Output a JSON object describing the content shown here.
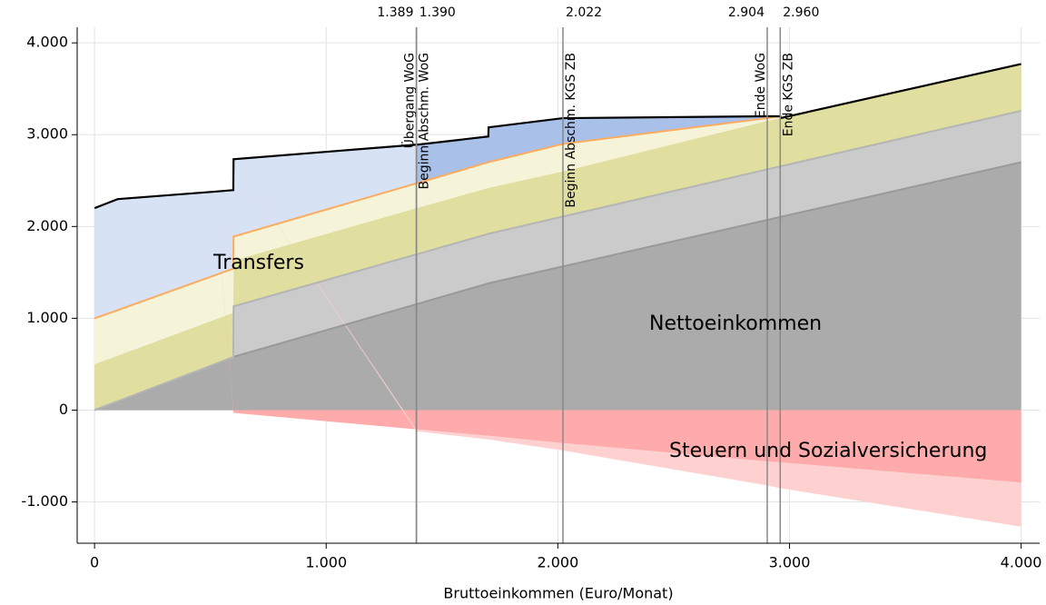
{
  "chart_data": {
    "type": "stacked_area",
    "x_label": "Bruttoeinkommen (Euro/Monat)",
    "x": [
      0,
      100,
      520,
      599,
      600,
      1389,
      1390,
      1700,
      1701,
      2022,
      2904,
      2960,
      2961,
      4000
    ],
    "series": [
      {
        "name": "Nettoeinkommen",
        "color": "#ababab",
        "line": "#999999",
        "values": [
          0,
          95,
          500,
          578,
          580,
          1153,
          1154,
          1380,
          1381,
          1565,
          2071,
          2103,
          2104,
          2700
        ]
      },
      {
        "color": "#cbcbcb",
        "line": "#b5b5b5",
        "values": [
          0,
          0,
          0,
          0,
          550,
          543,
          542,
          540,
          540,
          543,
          551,
          551,
          551,
          560
        ]
      },
      {
        "color": "#e0df9f",
        "values": [
          500,
          498,
          486,
          482,
          500,
          504,
          504,
          500,
          500,
          492,
          528,
          526,
          525,
          510
        ]
      },
      {
        "color": "#f5f3d8",
        "line": "#ffab5e",
        "values": [
          500,
          495,
          484,
          480,
          260,
          270,
          270,
          280,
          280,
          300,
          30,
          20,
          0,
          0
        ]
      },
      {
        "name": "Transfers",
        "color": "#d7e2f4",
        "values": [
          1200,
          1210,
          910,
          856,
          843,
          421,
          0,
          0,
          0,
          0,
          0,
          0,
          0,
          0
        ]
      },
      {
        "color": "#a9c0e8",
        "values": [
          0,
          0,
          0,
          0,
          0,
          0,
          420,
          280,
          379,
          280,
          20,
          0,
          0,
          0
        ]
      },
      {
        "name": "Steuern und Sozialversicherung",
        "color": "#ffabab",
        "values": [
          0,
          0,
          0,
          -30,
          -30,
          -210,
          -210,
          -280,
          -280,
          -360,
          -560,
          -570,
          -570,
          -790
        ]
      },
      {
        "color": "#ffd0d0",
        "values": [
          0,
          0,
          0,
          0,
          0,
          -20,
          -20,
          -40,
          -40,
          -80,
          -260,
          -280,
          -280,
          -480
        ]
      }
    ],
    "envelope_color": "#000000",
    "vlines": [
      {
        "value": 1389,
        "label": "1.389",
        "note": "Übergang WoG",
        "side": "left"
      },
      {
        "value": 1390,
        "label": "1.390",
        "note": "Beginn Abschm. WoG",
        "side": "right"
      },
      {
        "value": 2022,
        "label": "2.022",
        "note": "Beginn Abschm. KGS ZB",
        "side": "right"
      },
      {
        "value": 2904,
        "label": "2.904",
        "note": "Ende WoG",
        "side": "left"
      },
      {
        "value": 2960,
        "label": "2.960",
        "note": "Ende KGS ZB",
        "side": "right"
      }
    ],
    "xlim": [
      -75,
      4080
    ],
    "ylim": [
      -1450,
      4170
    ],
    "xticks": [
      0,
      {
        "value": 1000,
        "label": "1.000"
      },
      {
        "value": 2000,
        "label": "2.000"
      },
      {
        "value": 3000,
        "label": "3.000"
      },
      {
        "value": 4000,
        "label": "4.000"
      }
    ],
    "yticks": [
      {
        "value": -1000,
        "label": "-1.000"
      },
      0,
      {
        "value": 1000,
        "label": "1.000"
      },
      {
        "value": 2000,
        "label": "2.000"
      },
      {
        "value": 3000,
        "label": "3.000"
      },
      {
        "value": 4000,
        "label": "4.000"
      }
    ],
    "grid": true
  }
}
